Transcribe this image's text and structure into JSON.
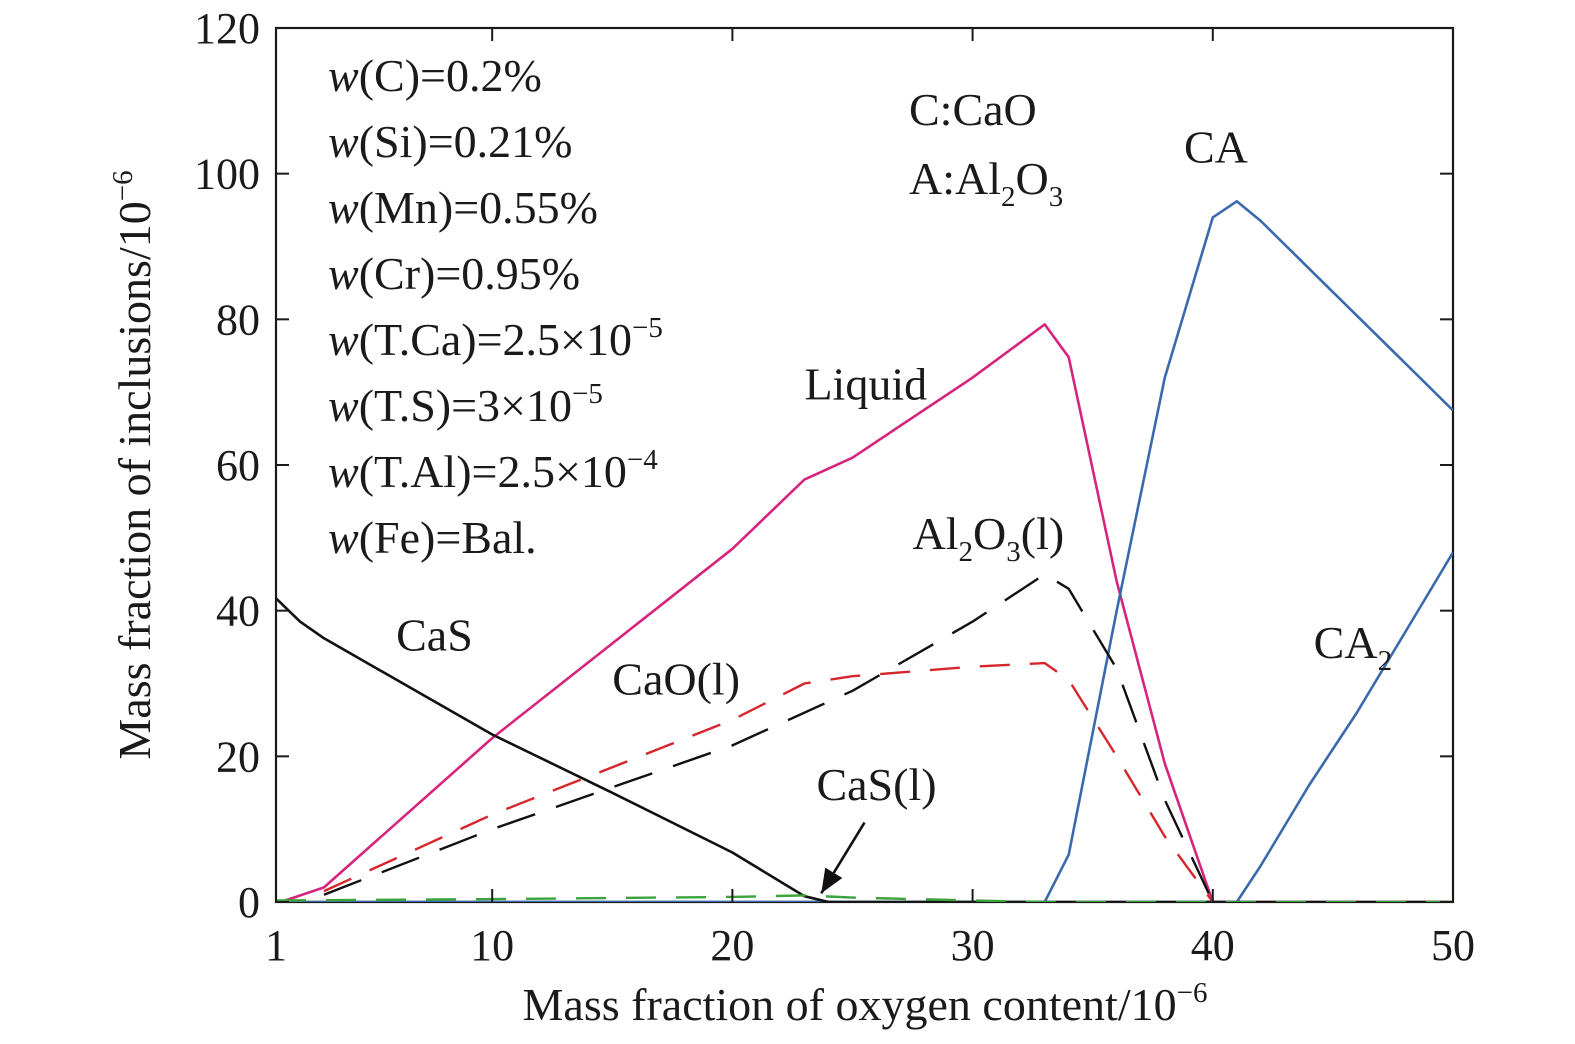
{
  "chart_data": {
    "type": "line",
    "title": "",
    "xlabel": "Mass fraction of oxygen content/10",
    "xlabel_exp": "−6",
    "ylabel": "Mass fraction of inclusions/10",
    "ylabel_exp": "−6",
    "xlim": [
      1,
      50
    ],
    "ylim": [
      0,
      120
    ],
    "xticks": [
      1,
      10,
      20,
      30,
      40,
      50
    ],
    "yticks": [
      0,
      20,
      40,
      60,
      80,
      100,
      120
    ],
    "grid": false,
    "legend": "none",
    "composition": [
      {
        "w": "w",
        "open": "(C)=0.2%"
      },
      {
        "w": "w",
        "open": "(Si)=0.21%"
      },
      {
        "w": "w",
        "open": "(Mn)=0.55%"
      },
      {
        "w": "w",
        "open": "(Cr)=0.95%"
      },
      {
        "w": "w",
        "open": "(T.Ca)=2.5×10",
        "sup": "−5"
      },
      {
        "w": "w",
        "open": "(T.S)=3×10",
        "sup": "−5"
      },
      {
        "w": "w",
        "open": "(T.Al)=2.5×10",
        "sup": "−4"
      },
      {
        "w": "w",
        "open": "(Fe)=Bal."
      }
    ],
    "notation": {
      "line1": "C:CaO",
      "line2_pre": "A:Al",
      "line2_sub1": "2",
      "line2_mid": "O",
      "line2_sub2": "3"
    },
    "series": [
      {
        "name": "Liquid",
        "color": "#d6247f",
        "dash": "solid",
        "points": [
          [
            1.2,
            0
          ],
          [
            3,
            2
          ],
          [
            10,
            22.5
          ],
          [
            20,
            48.5
          ],
          [
            23,
            58
          ],
          [
            25,
            61
          ],
          [
            30,
            72
          ],
          [
            33,
            79.3
          ],
          [
            34,
            74.8
          ],
          [
            36,
            44
          ],
          [
            38,
            19
          ],
          [
            40,
            0
          ],
          [
            50,
            0
          ]
        ],
        "label": {
          "text": "Liquid",
          "at": [
            23,
            69
          ]
        }
      },
      {
        "name": "CA",
        "color": "#3a6aad",
        "dash": "solid",
        "points": [
          [
            1,
            0
          ],
          [
            33,
            0
          ],
          [
            34,
            6.5
          ],
          [
            36,
            40
          ],
          [
            38,
            72
          ],
          [
            40,
            94
          ],
          [
            41,
            96.2
          ],
          [
            42,
            93.5
          ],
          [
            44,
            87
          ],
          [
            46,
            80.5
          ],
          [
            48,
            74
          ],
          [
            50,
            67.5
          ]
        ],
        "label": {
          "text": "CA",
          "at": [
            38.8,
            101.5
          ]
        }
      },
      {
        "name": "CA2",
        "color": "#3a6aad",
        "dash": "solid",
        "points": [
          [
            1,
            0
          ],
          [
            41,
            0
          ],
          [
            42,
            5
          ],
          [
            44,
            16
          ],
          [
            46,
            26
          ],
          [
            48,
            37
          ],
          [
            50,
            48
          ]
        ],
        "label": {
          "text": "CA",
          "sub": "2",
          "at": [
            44.2,
            33.5
          ]
        }
      },
      {
        "name": "CaS",
        "color": "#111111",
        "dash": "solid",
        "points": [
          [
            1,
            41.7
          ],
          [
            2,
            38.5
          ],
          [
            3,
            36.2
          ],
          [
            10,
            23
          ],
          [
            15,
            15
          ],
          [
            20,
            6.8
          ],
          [
            23,
            0.8
          ],
          [
            24,
            0
          ],
          [
            50,
            0
          ]
        ],
        "label": {
          "text": "CaS",
          "at": [
            6,
            34.5
          ]
        }
      },
      {
        "name": "Al2O3(l)",
        "color": "#111111",
        "dash": "long-dash",
        "points": [
          [
            3,
            1
          ],
          [
            10,
            10
          ],
          [
            20,
            21.5
          ],
          [
            25,
            29
          ],
          [
            30,
            38.5
          ],
          [
            33,
            45
          ],
          [
            34,
            43
          ],
          [
            36,
            32
          ],
          [
            38,
            14
          ],
          [
            40,
            0
          ]
        ],
        "label": {
          "text": "Al",
          "sub": "2",
          "text2": "O",
          "sub2": "3",
          "text3": "(l)",
          "at": [
            27.5,
            48.5
          ]
        }
      },
      {
        "name": "CaO(l)",
        "color": "#d6262b",
        "dash": "dash",
        "points": [
          [
            3,
            1.5
          ],
          [
            10,
            12
          ],
          [
            20,
            25
          ],
          [
            23,
            30
          ],
          [
            25,
            31
          ],
          [
            30,
            32.3
          ],
          [
            33,
            32.8
          ],
          [
            34,
            30.5
          ],
          [
            36,
            20
          ],
          [
            38,
            9
          ],
          [
            40,
            0
          ]
        ],
        "label": {
          "text": "CaO(l)",
          "at": [
            15,
            28.5
          ]
        }
      },
      {
        "name": "CaS(l)",
        "color": "#3aa33a",
        "dash": "dash",
        "points": [
          [
            1,
            0.2
          ],
          [
            10,
            0.4
          ],
          [
            20,
            0.7
          ],
          [
            23,
            0.9
          ],
          [
            25,
            0.6
          ],
          [
            30,
            0.2
          ],
          [
            33,
            0
          ],
          [
            50,
            0
          ]
        ],
        "label": {
          "text": "CaS(l)",
          "at": [
            23.5,
            14
          ]
        }
      }
    ],
    "annotation_arrow": {
      "from": [
        25.5,
        10.9
      ],
      "to": [
        23.7,
        1.2
      ]
    }
  }
}
